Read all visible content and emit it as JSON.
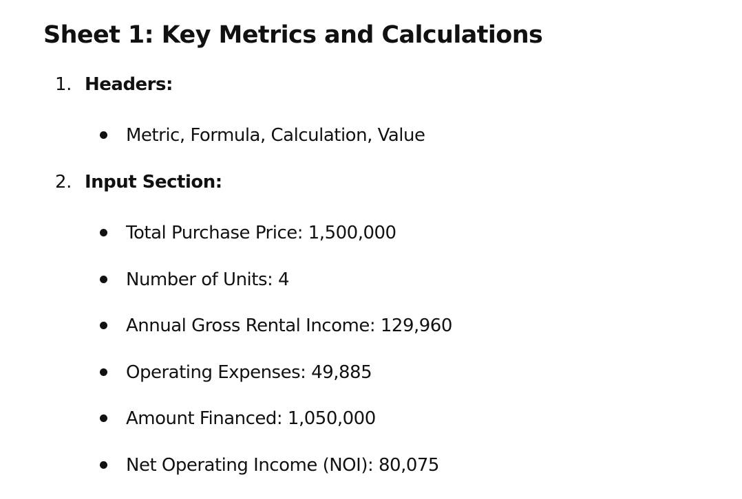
{
  "section_title": "Sheet 1: Key Metrics and Calculations",
  "sections": [
    {
      "number": "1.",
      "label": "Headers:",
      "bullets": [
        "Metric, Formula, Calculation, Value"
      ]
    },
    {
      "number": "2.",
      "label": "Input Section:",
      "bullets": [
        "Total Purchase Price: 1,500,000",
        "Number of Units: 4",
        "Annual Gross Rental Income: 129,960",
        "Operating Expenses: 49,885",
        "Amount Financed: 1,050,000",
        "Net Operating Income (NOI): 80,075"
      ]
    }
  ]
}
